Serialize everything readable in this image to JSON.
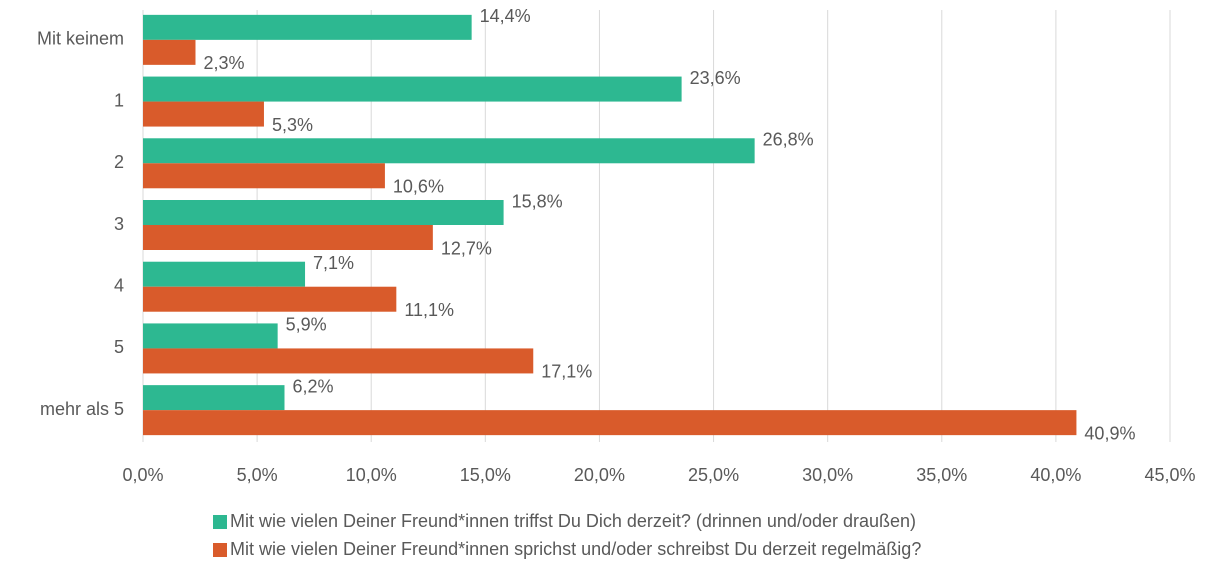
{
  "chart_data": {
    "type": "bar",
    "orientation": "horizontal",
    "categories": [
      "Mit keinem",
      "1",
      "2",
      "3",
      "4",
      "5",
      "mehr als 5"
    ],
    "series": [
      {
        "name": "Mit wie vielen Deiner Freund*innen triffst Du Dich derzeit? (drinnen und/oder draußen)",
        "color": "#2db891",
        "values": [
          14.4,
          23.6,
          26.8,
          15.8,
          7.1,
          5.9,
          6.2
        ],
        "value_labels": [
          "14,4%",
          "23,6%",
          "26,8%",
          "15,8%",
          "7,1%",
          "5,9%",
          "6,2%"
        ]
      },
      {
        "name": "Mit wie vielen Deiner Freund*innen sprichst und/oder schreibst Du derzeit regelmäßig?",
        "color": "#d95b2b",
        "values": [
          2.3,
          5.3,
          10.6,
          12.7,
          11.1,
          17.1,
          40.9
        ],
        "value_labels": [
          "2,3%",
          "5,3%",
          "10,6%",
          "12,7%",
          "11,1%",
          "17,1%",
          "40,9%"
        ]
      }
    ],
    "xlim": [
      0,
      45
    ],
    "xticks": [
      {
        "value": 0,
        "label": "0,0%"
      },
      {
        "value": 5,
        "label": "5,0%"
      },
      {
        "value": 10,
        "label": "10,0%"
      },
      {
        "value": 15,
        "label": "15,0%"
      },
      {
        "value": 20,
        "label": "20,0%"
      },
      {
        "value": 25,
        "label": "25,0%"
      },
      {
        "value": 30,
        "label": "30,0%"
      },
      {
        "value": 35,
        "label": "35,0%"
      },
      {
        "value": 40,
        "label": "40,0%"
      },
      {
        "value": 45,
        "label": "45,0%"
      }
    ],
    "grid": true,
    "legend": "bottom"
  }
}
